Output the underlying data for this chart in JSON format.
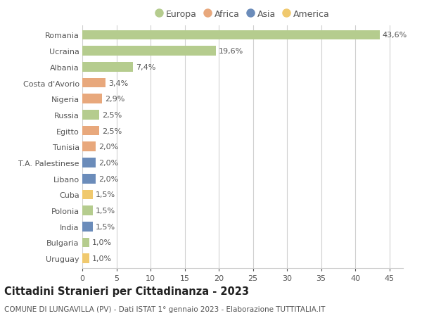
{
  "categories": [
    "Romania",
    "Ucraina",
    "Albania",
    "Costa d'Avorio",
    "Nigeria",
    "Russia",
    "Egitto",
    "Tunisia",
    "T.A. Palestinese",
    "Libano",
    "Cuba",
    "Polonia",
    "India",
    "Bulgaria",
    "Uruguay"
  ],
  "values": [
    43.6,
    19.6,
    7.4,
    3.4,
    2.9,
    2.5,
    2.5,
    2.0,
    2.0,
    2.0,
    1.5,
    1.5,
    1.5,
    1.0,
    1.0
  ],
  "labels": [
    "43,6%",
    "19,6%",
    "7,4%",
    "3,4%",
    "2,9%",
    "2,5%",
    "2,5%",
    "2,0%",
    "2,0%",
    "2,0%",
    "1,5%",
    "1,5%",
    "1,5%",
    "1,0%",
    "1,0%"
  ],
  "continents": [
    "Europa",
    "Europa",
    "Europa",
    "Africa",
    "Africa",
    "Europa",
    "Africa",
    "Africa",
    "Asia",
    "Asia",
    "America",
    "Europa",
    "Asia",
    "Europa",
    "America"
  ],
  "continent_colors": {
    "Europa": "#b5cc8e",
    "Africa": "#e8a87c",
    "Asia": "#6b8cba",
    "America": "#f0c96e"
  },
  "legend_order": [
    "Europa",
    "Africa",
    "Asia",
    "America"
  ],
  "xlim": [
    0,
    47
  ],
  "xticks": [
    0,
    5,
    10,
    15,
    20,
    25,
    30,
    35,
    40,
    45
  ],
  "title": "Cittadini Stranieri per Cittadinanza - 2023",
  "subtitle": "COMUNE DI LUNGAVILLA (PV) - Dati ISTAT 1° gennaio 2023 - Elaborazione TUTTITALIA.IT",
  "bg_color": "#ffffff",
  "grid_color": "#d0d0d0",
  "bar_height": 0.6,
  "label_fontsize": 8,
  "tick_fontsize": 8,
  "title_fontsize": 10.5,
  "subtitle_fontsize": 7.5
}
